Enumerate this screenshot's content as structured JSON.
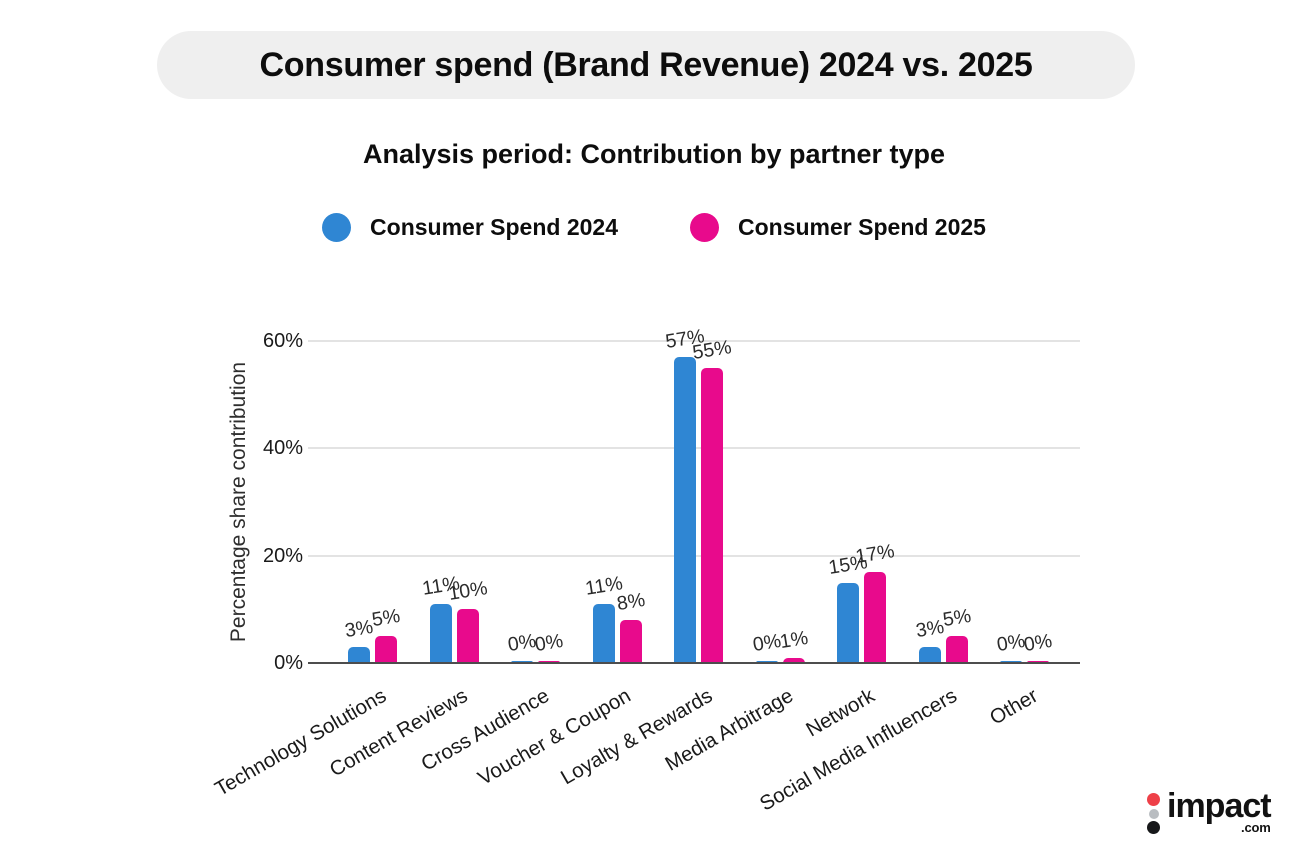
{
  "header": {
    "title": "Consumer spend (Brand Revenue) 2024 vs. 2025",
    "subtitle": "Analysis period: Contribution by partner type"
  },
  "chart_data": {
    "type": "bar",
    "title": "Consumer spend (Brand Revenue) 2024 vs. 2025",
    "subtitle": "Analysis period: Contribution by partner type",
    "xlabel": "",
    "ylabel": "Percentage share contribution",
    "categories": [
      "Technology Solutions",
      "Content Reviews",
      "Cross Audience",
      "Voucher & Coupon",
      "Loyalty & Rewards",
      "Media Arbitrage",
      "Network",
      "Social Media Influencers",
      "Other"
    ],
    "series": [
      {
        "name": "Consumer Spend 2024",
        "color": "#2F86D3",
        "values": [
          3,
          11,
          0,
          11,
          57,
          0,
          15,
          3,
          0
        ]
      },
      {
        "name": "Consumer Spend 2025",
        "color": "#E80A8C",
        "values": [
          5,
          10,
          0,
          8,
          55,
          1,
          17,
          5,
          0
        ]
      }
    ],
    "value_labels": [
      [
        "3%",
        "11%",
        "0%",
        "11%",
        "57%",
        "0%",
        "15%",
        "3%",
        "0%"
      ],
      [
        "5%",
        "10%",
        "0%",
        "8%",
        "55%",
        "1%",
        "17%",
        "5%",
        "0%"
      ]
    ],
    "ylim": [
      0,
      60
    ],
    "yticks": [
      0,
      20,
      40,
      60
    ],
    "ytick_labels": [
      "0%",
      "20%",
      "40%",
      "60%"
    ],
    "grid": true,
    "legend_position": "top",
    "annotations_shown": true
  },
  "branding": {
    "logo_word": "impact",
    "logo_tld": ".com",
    "dot_colors": [
      "#EE4048",
      "#B9BDC1",
      "#17181A"
    ]
  }
}
